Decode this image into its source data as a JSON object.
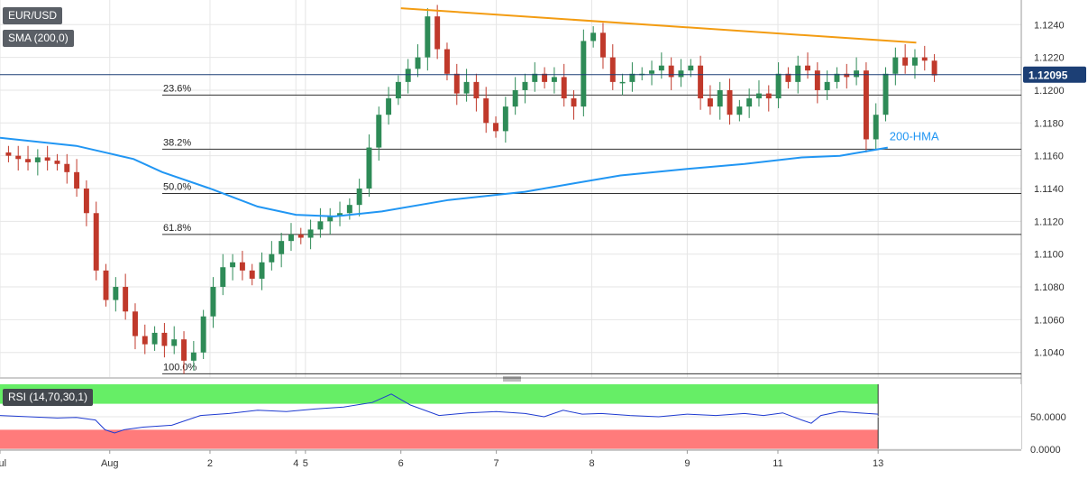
{
  "symbol_label": "EUR/USD",
  "sma_label": "SMA (200,0)",
  "rsi_label": "RSI (14,70,30,1)",
  "price_tag": "1.12095",
  "colors": {
    "up": "#2e8b57",
    "down": "#c0392b",
    "sma": "#2196f3",
    "trendline": "#f39c12",
    "rsi_line": "#1f3bd1",
    "rsi_overbought": "#66ee66",
    "rsi_oversold": "#ff7b7b",
    "price_tag": "#1c3f75",
    "grid": "#e6e6e6"
  },
  "chart_data": [
    {
      "type": "candlestick",
      "title": "EUR/USD",
      "ylim": [
        1.1025,
        1.1255
      ],
      "yticks": [
        "1.1040",
        "1.1060",
        "1.1080",
        "1.1100",
        "1.1120",
        "1.1140",
        "1.1160",
        "1.1180",
        "1.1200",
        "1.1220",
        "1.1240"
      ],
      "x_ticks": [
        {
          "label": "Jul",
          "t": 0
        },
        {
          "label": "Aug",
          "t": 11.5
        },
        {
          "label": "2",
          "t": 22
        },
        {
          "label": "4",
          "t": 31
        },
        {
          "label": "5",
          "t": 32
        },
        {
          "label": "6",
          "t": 42
        },
        {
          "label": "7",
          "t": 52
        },
        {
          "label": "8",
          "t": 62
        },
        {
          "label": "9",
          "t": 72
        },
        {
          "label": "11",
          "t": 81.5
        },
        {
          "label": "13",
          "t": 92
        }
      ],
      "x_range": [
        0,
        107
      ],
      "candles_close": [
        1.116,
        1.1158,
        1.1156,
        1.1159,
        1.1157,
        1.1155,
        1.115,
        1.114,
        1.1125,
        1.109,
        1.1072,
        1.108,
        1.1065,
        1.105,
        1.1045,
        1.1052,
        1.1044,
        1.1048,
        1.1035,
        1.104,
        1.1062,
        1.108,
        1.1092,
        1.1095,
        1.109,
        1.1085,
        1.1095,
        1.11,
        1.1108,
        1.1112,
        1.111,
        1.1115,
        1.112,
        1.1123,
        1.1125,
        1.113,
        1.114,
        1.1165,
        1.1185,
        1.1195,
        1.1205,
        1.1213,
        1.122,
        1.1245,
        1.1225,
        1.121,
        1.1198,
        1.1205,
        1.1195,
        1.118,
        1.1175,
        1.119,
        1.12,
        1.1205,
        1.121,
        1.1205,
        1.1208,
        1.1195,
        1.119,
        1.123,
        1.1235,
        1.122,
        1.1205,
        1.1205,
        1.121,
        1.121,
        1.1212,
        1.1215,
        1.1208,
        1.1212,
        1.1215,
        1.1195,
        1.119,
        1.12,
        1.1185,
        1.119,
        1.1195,
        1.1198,
        1.1195,
        1.121,
        1.1205,
        1.1215,
        1.1212,
        1.12,
        1.1205,
        1.121,
        1.1208,
        1.1212,
        1.117,
        1.1185,
        1.121,
        1.122,
        1.1215,
        1.122,
        1.1218,
        1.1209
      ],
      "reference_levels": [
        {
          "label": "23.6%",
          "y": 1.1197
        },
        {
          "label": "38.2%",
          "y": 1.1164
        },
        {
          "label": "50.0%",
          "y": 1.1137
        },
        {
          "label": "61.8%",
          "y": 1.1112
        },
        {
          "label": "100.0%",
          "y": 1.1027
        }
      ],
      "current_price": 1.12095,
      "series": [
        {
          "name": "SMA (200,0)",
          "annotation": "200-HMA",
          "points": [
            [
              0,
              1.1171
            ],
            [
              8,
              1.1166
            ],
            [
              14,
              1.1158
            ],
            [
              17,
              1.115
            ],
            [
              22,
              1.114
            ],
            [
              27,
              1.1129
            ],
            [
              31,
              1.1124
            ],
            [
              35,
              1.1123
            ],
            [
              40,
              1.1126
            ],
            [
              47,
              1.1133
            ],
            [
              55,
              1.1138
            ],
            [
              60,
              1.1143
            ],
            [
              65,
              1.1148
            ],
            [
              72,
              1.1152
            ],
            [
              78,
              1.1155
            ],
            [
              84,
              1.1159
            ],
            [
              88,
              1.116
            ],
            [
              93,
              1.1165
            ]
          ]
        },
        {
          "name": "trendline",
          "points": [
            [
              42,
              1.125
            ],
            [
              96,
              1.1229
            ]
          ]
        }
      ]
    },
    {
      "type": "line",
      "title": "RSI (14,70,30,1)",
      "ylim": [
        0,
        100
      ],
      "yticks": [
        "50.0000",
        "0.0000"
      ],
      "overbought": 70,
      "oversold": 30,
      "series": [
        {
          "name": "RSI",
          "points": [
            [
              0,
              52
            ],
            [
              3,
              50
            ],
            [
              6,
              48
            ],
            [
              8,
              49
            ],
            [
              10,
              45
            ],
            [
              11,
              30
            ],
            [
              12,
              25
            ],
            [
              13,
              30
            ],
            [
              15,
              34
            ],
            [
              18,
              37
            ],
            [
              21,
              52
            ],
            [
              24,
              55
            ],
            [
              27,
              60
            ],
            [
              30,
              58
            ],
            [
              33,
              62
            ],
            [
              36,
              65
            ],
            [
              39,
              72
            ],
            [
              41,
              85
            ],
            [
              43,
              68
            ],
            [
              46,
              52
            ],
            [
              49,
              56
            ],
            [
              52,
              58
            ],
            [
              55,
              55
            ],
            [
              57,
              50
            ],
            [
              59,
              60
            ],
            [
              61,
              54
            ],
            [
              63,
              55
            ],
            [
              66,
              52
            ],
            [
              69,
              50
            ],
            [
              72,
              54
            ],
            [
              75,
              52
            ],
            [
              78,
              55
            ],
            [
              80,
              52
            ],
            [
              82,
              56
            ],
            [
              84,
              45
            ],
            [
              85,
              40
            ],
            [
              86,
              52
            ],
            [
              88,
              58
            ],
            [
              90,
              56
            ],
            [
              92,
              54
            ]
          ]
        }
      ]
    }
  ]
}
